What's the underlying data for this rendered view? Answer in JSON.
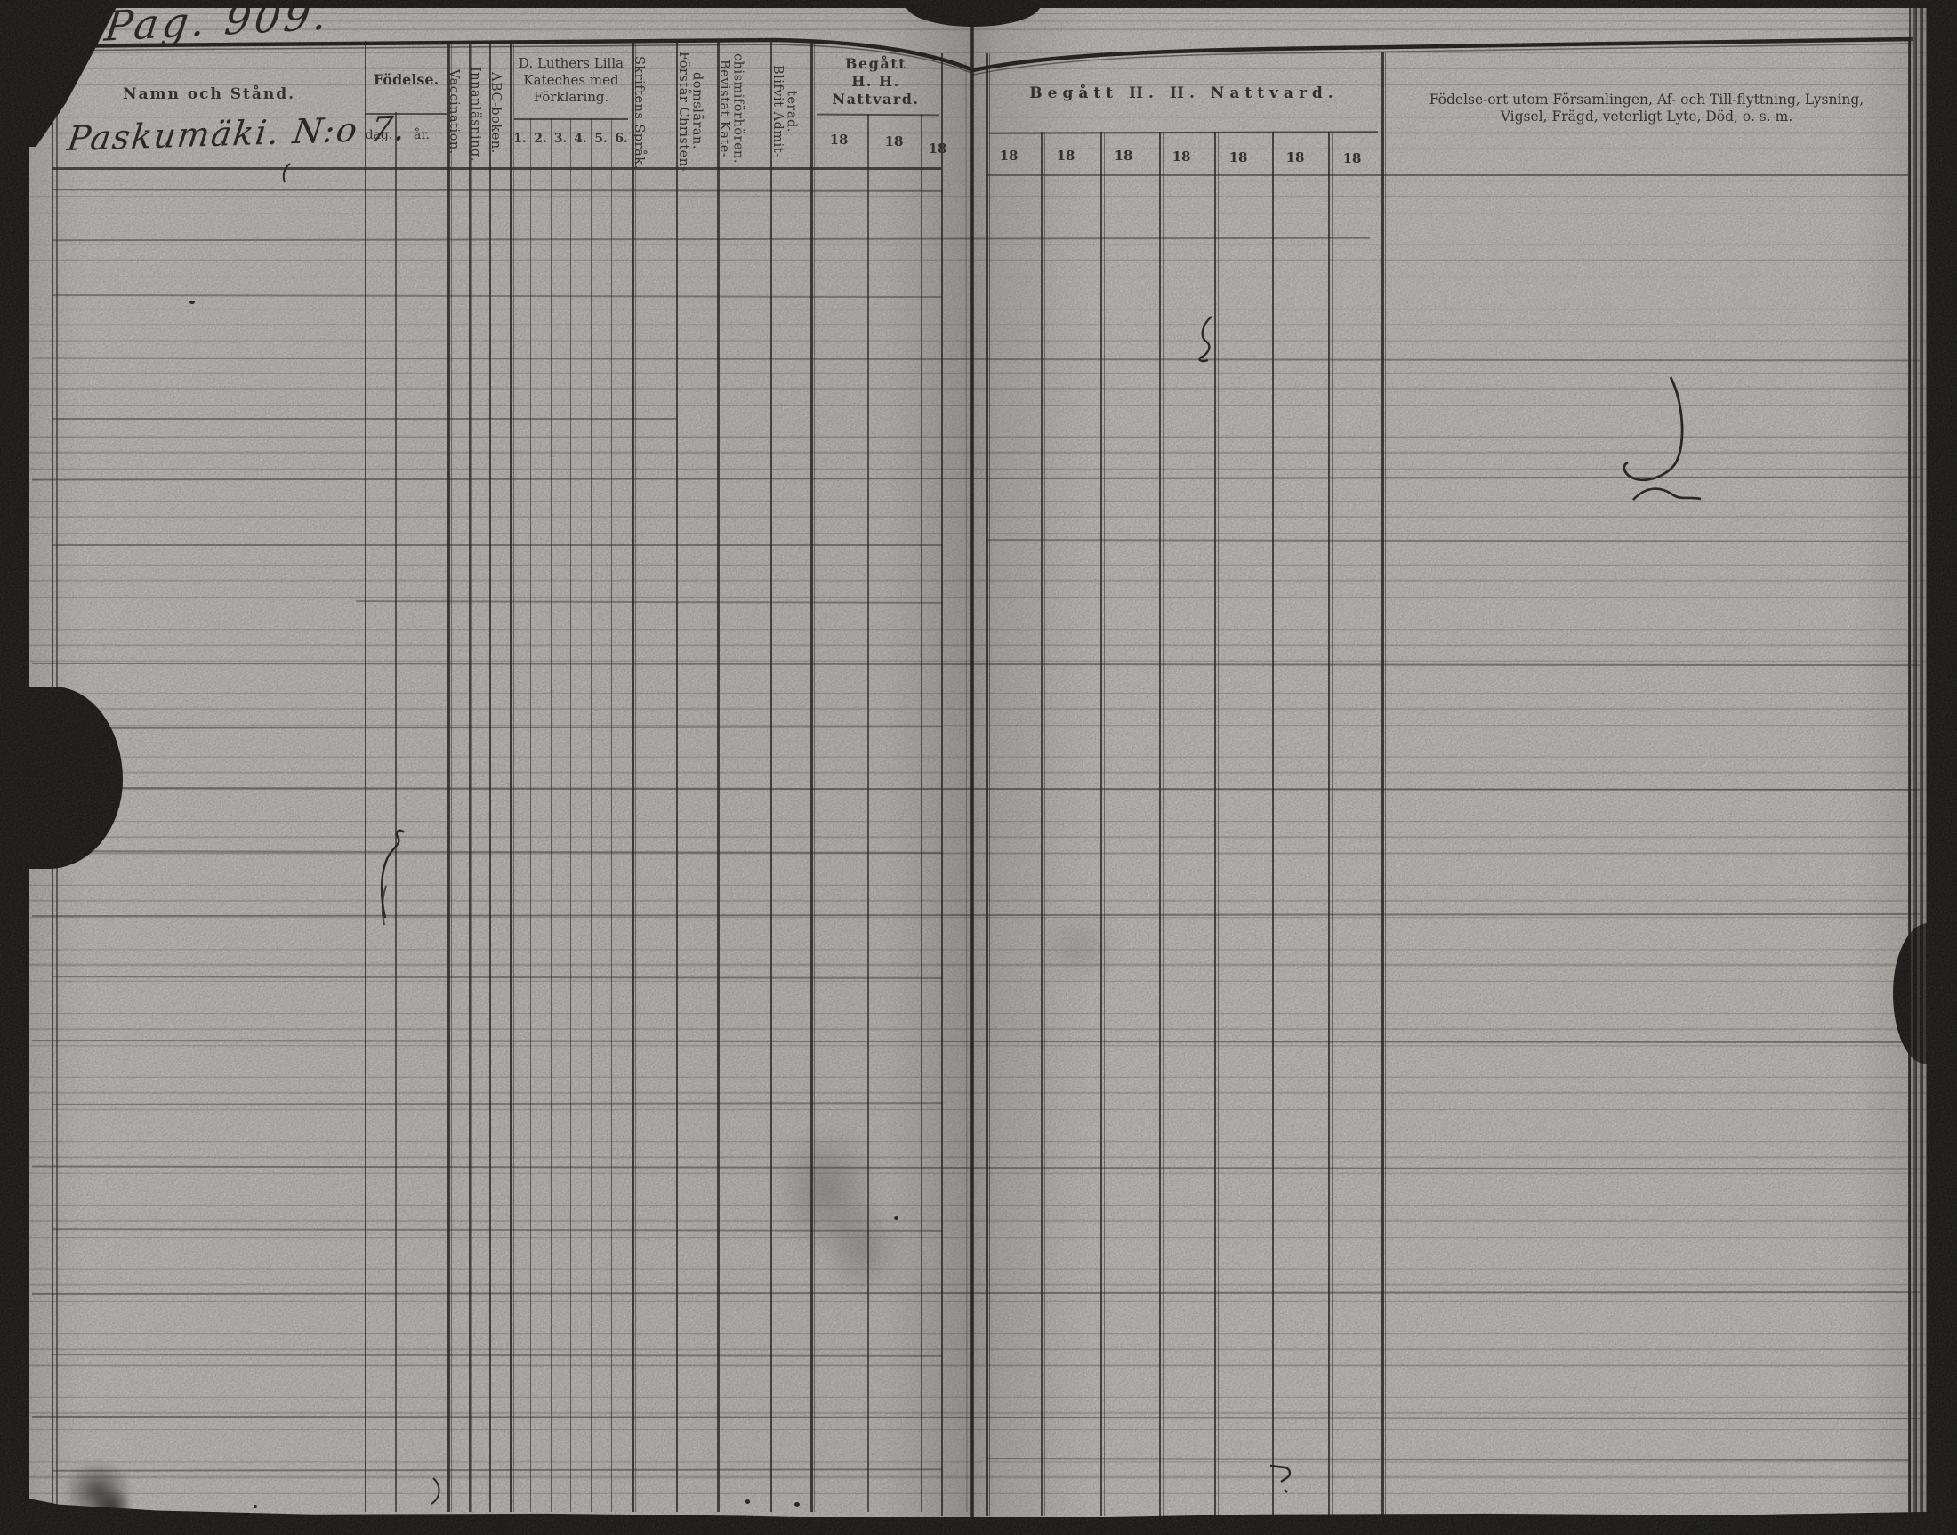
{
  "page": {
    "page_number": "Pag. 909.",
    "entry_heading": "Paskumäki. N:o 7."
  },
  "left_page": {
    "name_column_header": "Namn och Stånd.",
    "birth": {
      "header": "Födelse.",
      "sub_day": "dag.",
      "sub_year": "år."
    },
    "vaccination_header": "Vaccination.",
    "reading_header": "Innanläsning.",
    "abc_book_header": "ABC-boken.",
    "catechism": {
      "header_line1": "D. Luthers Lilla",
      "header_line2": "Kateches med",
      "header_line3": "Förklaring.",
      "subcolumns": [
        "1.",
        "2.",
        "3.",
        "4.",
        "5.",
        "6."
      ]
    },
    "scripture_language_header": "Skriftens Språk.",
    "understands_header_line1": "Förstår Christen-",
    "understands_header_line2": "domsläran.",
    "attended_exams_header_line1": "Bevistat Kate-",
    "attended_exams_header_line2": "chismiförhören.",
    "admitted_header_line1": "Blifvit Admit-",
    "admitted_header_line2": "terad.",
    "communion": {
      "header_line1": "Begått",
      "header_line2": "H. H. Nattvard.",
      "year_prefixes": [
        "18",
        "18",
        "18"
      ]
    }
  },
  "right_page": {
    "communion_header": "Begått H. H. Nattvard.",
    "year_prefixes": [
      "18",
      "18",
      "18",
      "18",
      "18",
      "18",
      "18"
    ],
    "remarks_header_line1": "Födelse-ort utom Församlingen, Af- och Till-flyttning, Lysning,",
    "remarks_header_line2": "Vigsel, Frägd, veterligt Lyte, Död, o. s. m."
  },
  "colors": {
    "paper": "#d8d6d1",
    "ink": "#1b1814",
    "scan_background": "#050505"
  }
}
